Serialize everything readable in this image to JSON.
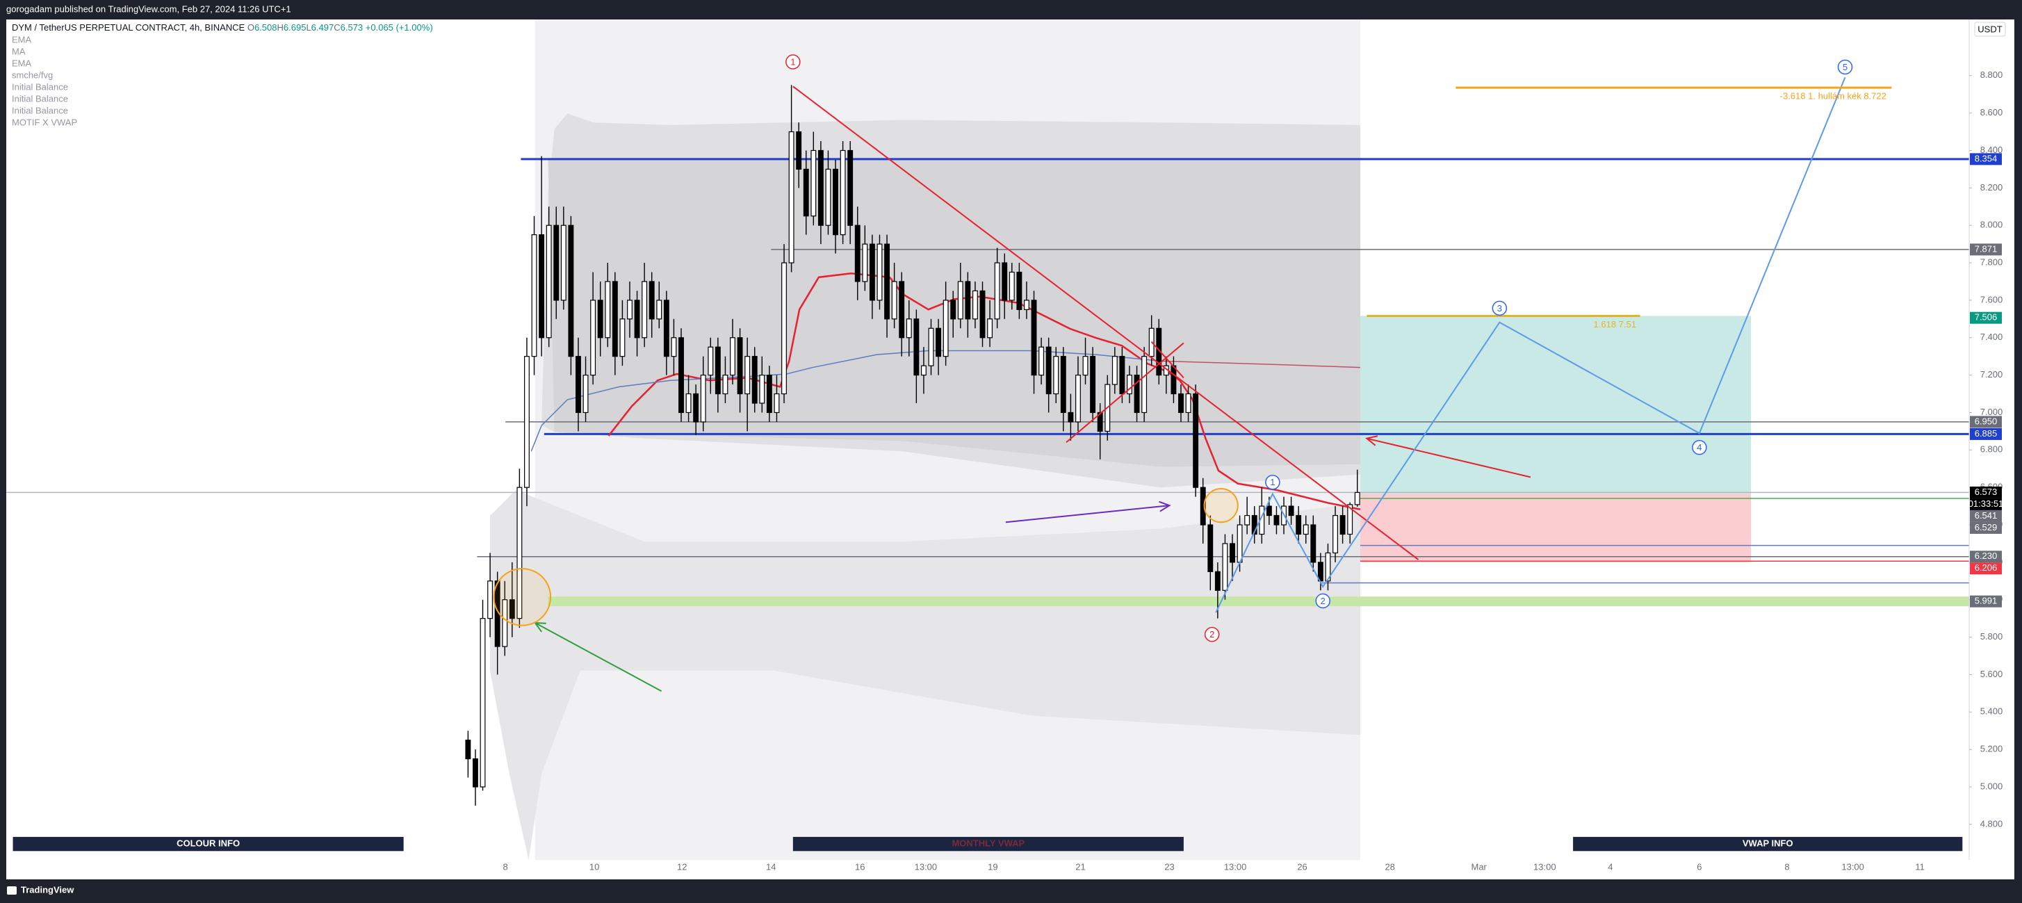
{
  "header": {
    "publisher": "gorogadam published on TradingView.com, Feb 27, 2024 11:26 UTC+1"
  },
  "chart_data": {
    "type": "candlestick",
    "title": "DYM / TetherUS PERPETUAL CONTRACT, 4h, BINANCE",
    "legend_keys": [
      "O",
      "H",
      "L",
      "C"
    ],
    "legend_values": [
      6.508,
      6.695,
      6.497,
      6.573
    ],
    "change": {
      "value": 0.065,
      "label": "+0.065"
    },
    "change_pct": {
      "value": 1.0,
      "label": "(+1.00%)"
    },
    "indicators": [
      "EMA",
      "MA",
      "EMA",
      "smche/fvg",
      "Initial Balance",
      "Initial Balance",
      "Initial Balance",
      "MOTIF X VWAP"
    ],
    "currency": "USDT",
    "up_color": "#ffffff",
    "down_color": "#000000",
    "ylim": [
      4.61,
      9.1
    ],
    "yticks": [
      {
        "value": 4.8,
        "label": "4.800"
      },
      {
        "value": 5.0,
        "label": "5.000"
      },
      {
        "value": 5.2,
        "label": "5.200"
      },
      {
        "value": 5.4,
        "label": "5.400"
      },
      {
        "value": 5.6,
        "label": "5.600"
      },
      {
        "value": 5.8,
        "label": "5.800"
      },
      {
        "value": 6.0,
        "label": "6.000"
      },
      {
        "value": 6.2,
        "label": "6.200"
      },
      {
        "value": 6.4,
        "label": "6.400"
      },
      {
        "value": 6.6,
        "label": "6.600"
      },
      {
        "value": 6.8,
        "label": "6.800"
      },
      {
        "value": 7.0,
        "label": "7.000"
      },
      {
        "value": 7.2,
        "label": "7.200"
      },
      {
        "value": 7.4,
        "label": "7.400"
      },
      {
        "value": 7.6,
        "label": "7.600"
      },
      {
        "value": 7.8,
        "label": "7.800"
      },
      {
        "value": 8.0,
        "label": "8.000"
      },
      {
        "value": 8.2,
        "label": "8.200"
      },
      {
        "value": 8.4,
        "label": "8.400"
      },
      {
        "value": 8.6,
        "label": "8.600"
      },
      {
        "value": 8.8,
        "label": "8.800"
      }
    ],
    "xticks": [
      "8",
      "10",
      "12",
      "14",
      "16",
      "13:00",
      "19",
      "21",
      "23",
      "13:00",
      "26",
      "28",
      "Mar",
      "13:00",
      "4",
      "6",
      "8",
      "13:00",
      "11"
    ],
    "ohlc": [
      [
        5.25,
        5.3,
        5.05,
        5.15
      ],
      [
        5.15,
        5.2,
        4.9,
        5.0
      ],
      [
        5.0,
        6.0,
        4.98,
        5.9
      ],
      [
        5.9,
        6.25,
        5.8,
        6.1
      ],
      [
        6.1,
        6.15,
        5.6,
        5.75
      ],
      [
        5.75,
        6.1,
        5.7,
        6.0
      ],
      [
        6.0,
        6.2,
        5.8,
        5.9
      ],
      [
        5.9,
        6.7,
        5.85,
        6.6
      ],
      [
        6.6,
        7.4,
        6.5,
        7.3
      ],
      [
        7.3,
        8.05,
        7.2,
        7.95
      ],
      [
        7.95,
        8.37,
        7.3,
        7.4
      ],
      [
        7.4,
        8.1,
        7.35,
        8.0
      ],
      [
        8.0,
        8.1,
        7.5,
        7.6
      ],
      [
        7.6,
        8.1,
        7.55,
        8.0
      ],
      [
        8.0,
        8.05,
        7.2,
        7.3
      ],
      [
        7.3,
        7.4,
        6.9,
        7.0
      ],
      [
        7.0,
        7.3,
        6.95,
        7.2
      ],
      [
        7.2,
        7.75,
        7.15,
        7.6
      ],
      [
        7.6,
        7.7,
        7.3,
        7.4
      ],
      [
        7.4,
        7.8,
        7.35,
        7.7
      ],
      [
        7.7,
        7.75,
        7.2,
        7.3
      ],
      [
        7.3,
        7.6,
        7.25,
        7.5
      ],
      [
        7.5,
        7.7,
        7.4,
        7.6
      ],
      [
        7.6,
        7.65,
        7.3,
        7.4
      ],
      [
        7.4,
        7.8,
        7.35,
        7.7
      ],
      [
        7.7,
        7.75,
        7.4,
        7.5
      ],
      [
        7.5,
        7.7,
        7.45,
        7.6
      ],
      [
        7.6,
        7.65,
        7.2,
        7.3
      ],
      [
        7.3,
        7.5,
        7.2,
        7.4
      ],
      [
        7.4,
        7.45,
        6.95,
        7.0
      ],
      [
        7.0,
        7.2,
        6.95,
        7.1
      ],
      [
        7.1,
        7.15,
        6.88,
        6.95
      ],
      [
        6.95,
        7.3,
        6.9,
        7.2
      ],
      [
        7.2,
        7.4,
        7.1,
        7.35
      ],
      [
        7.35,
        7.4,
        7.0,
        7.1
      ],
      [
        7.1,
        7.3,
        7.05,
        7.2
      ],
      [
        7.2,
        7.5,
        7.15,
        7.4
      ],
      [
        7.4,
        7.45,
        7.0,
        7.1
      ],
      [
        7.1,
        7.4,
        6.9,
        7.3
      ],
      [
        7.3,
        7.35,
        7.0,
        7.05
      ],
      [
        7.05,
        7.3,
        7.0,
        7.2
      ],
      [
        7.2,
        7.25,
        6.95,
        7.0
      ],
      [
        7.0,
        7.2,
        6.95,
        7.1
      ],
      [
        7.1,
        7.9,
        7.05,
        7.8
      ],
      [
        7.8,
        8.75,
        7.75,
        8.5
      ],
      [
        8.5,
        8.55,
        8.2,
        8.3
      ],
      [
        8.3,
        8.4,
        7.95,
        8.05
      ],
      [
        8.05,
        8.5,
        8.0,
        8.4
      ],
      [
        8.4,
        8.45,
        7.9,
        8.0
      ],
      [
        8.0,
        8.4,
        7.95,
        8.3
      ],
      [
        8.3,
        8.35,
        7.85,
        7.95
      ],
      [
        7.95,
        8.45,
        7.9,
        8.4
      ],
      [
        8.4,
        8.45,
        7.9,
        8.0
      ],
      [
        8.0,
        8.1,
        7.6,
        7.7
      ],
      [
        7.7,
        8.0,
        7.65,
        7.9
      ],
      [
        7.9,
        7.95,
        7.5,
        7.6
      ],
      [
        7.6,
        7.95,
        7.55,
        7.9
      ],
      [
        7.9,
        7.95,
        7.4,
        7.5
      ],
      [
        7.5,
        7.8,
        7.45,
        7.7
      ],
      [
        7.7,
        7.75,
        7.3,
        7.4
      ],
      [
        7.4,
        7.6,
        7.3,
        7.5
      ],
      [
        7.5,
        7.55,
        7.05,
        7.2
      ],
      [
        7.2,
        7.35,
        7.1,
        7.25
      ],
      [
        7.25,
        7.5,
        7.2,
        7.45
      ],
      [
        7.45,
        7.5,
        7.2,
        7.3
      ],
      [
        7.3,
        7.7,
        7.25,
        7.6
      ],
      [
        7.6,
        7.65,
        7.4,
        7.5
      ],
      [
        7.5,
        7.8,
        7.45,
        7.7
      ],
      [
        7.7,
        7.75,
        7.4,
        7.5
      ],
      [
        7.5,
        7.7,
        7.45,
        7.65
      ],
      [
        7.65,
        7.7,
        7.35,
        7.4
      ],
      [
        7.4,
        7.6,
        7.35,
        7.5
      ],
      [
        7.5,
        7.88,
        7.45,
        7.8
      ],
      [
        7.8,
        7.85,
        7.5,
        7.6
      ],
      [
        7.6,
        7.8,
        7.55,
        7.75
      ],
      [
        7.75,
        7.8,
        7.5,
        7.55
      ],
      [
        7.55,
        7.7,
        7.5,
        7.6
      ],
      [
        7.6,
        7.65,
        7.1,
        7.2
      ],
      [
        7.2,
        7.4,
        7.15,
        7.35
      ],
      [
        7.35,
        7.4,
        7.0,
        7.1
      ],
      [
        7.1,
        7.35,
        7.05,
        7.3
      ],
      [
        7.3,
        7.35,
        6.9,
        7.0
      ],
      [
        7.0,
        7.1,
        6.85,
        6.95
      ],
      [
        6.95,
        7.3,
        6.9,
        7.2
      ],
      [
        7.2,
        7.4,
        7.15,
        7.3
      ],
      [
        7.3,
        7.35,
        6.95,
        7.0
      ],
      [
        7.0,
        7.05,
        6.75,
        6.9
      ],
      [
        6.9,
        7.2,
        6.85,
        7.15
      ],
      [
        7.15,
        7.35,
        7.1,
        7.3
      ],
      [
        7.3,
        7.35,
        7.05,
        7.1
      ],
      [
        7.1,
        7.25,
        7.05,
        7.2
      ],
      [
        7.2,
        7.25,
        6.95,
        7.0
      ],
      [
        7.0,
        7.35,
        6.95,
        7.3
      ],
      [
        7.3,
        7.52,
        7.25,
        7.45
      ],
      [
        7.45,
        7.5,
        7.15,
        7.2
      ],
      [
        7.2,
        7.3,
        7.1,
        7.25
      ],
      [
        7.25,
        7.3,
        7.05,
        7.1
      ],
      [
        7.1,
        7.15,
        6.95,
        7.0
      ],
      [
        7.0,
        7.15,
        6.95,
        7.1
      ],
      [
        7.1,
        7.15,
        6.55,
        6.6
      ],
      [
        6.6,
        6.65,
        6.3,
        6.4
      ],
      [
        6.4,
        6.45,
        6.05,
        6.15
      ],
      [
        6.15,
        6.2,
        5.9,
        6.05
      ],
      [
        6.05,
        6.35,
        6.0,
        6.3
      ],
      [
        6.3,
        6.35,
        6.1,
        6.2
      ],
      [
        6.2,
        6.45,
        6.15,
        6.4
      ],
      [
        6.4,
        6.55,
        6.35,
        6.45
      ],
      [
        6.45,
        6.5,
        6.3,
        6.35
      ],
      [
        6.35,
        6.6,
        6.3,
        6.5
      ],
      [
        6.5,
        6.55,
        6.4,
        6.45
      ],
      [
        6.45,
        6.5,
        6.35,
        6.4
      ],
      [
        6.4,
        6.55,
        6.35,
        6.5
      ],
      [
        6.5,
        6.55,
        6.4,
        6.45
      ],
      [
        6.45,
        6.5,
        6.3,
        6.35
      ],
      [
        6.35,
        6.45,
        6.3,
        6.4
      ],
      [
        6.4,
        6.45,
        6.15,
        6.2
      ],
      [
        6.2,
        6.25,
        6.05,
        6.1
      ],
      [
        6.1,
        6.3,
        6.05,
        6.25
      ],
      [
        6.25,
        6.5,
        6.2,
        6.45
      ],
      [
        6.45,
        6.5,
        6.3,
        6.35
      ],
      [
        6.35,
        6.52,
        6.3,
        6.508
      ],
      [
        6.508,
        6.695,
        6.497,
        6.573
      ]
    ],
    "levels": [
      {
        "price": 8.354,
        "color": "#1e3fd0",
        "line": "#1e3fd0"
      },
      {
        "price": 7.871,
        "color": "#6b6e78",
        "line": "#6b6e78"
      },
      {
        "price": 7.506,
        "color": "#089981"
      },
      {
        "price": 6.95,
        "label": "6.950",
        "color": "#6b6e78",
        "line": "#6b6e78"
      },
      {
        "price": 6.885,
        "color": "#1e3fd0",
        "line": "#1e3fd0"
      },
      {
        "price": 6.573,
        "color": "#000000",
        "line": "#b2b5be"
      },
      {
        "price": 6.541,
        "color": "#6b6e78",
        "line": "#4caf50"
      },
      {
        "price": 6.529,
        "color": "#6b6e78"
      },
      {
        "price": 6.23,
        "label": "6.230",
        "color": "#6b6e78",
        "line": "#6b6e78"
      },
      {
        "price": 6.206,
        "color": "#f23645",
        "line": "#f23645"
      },
      {
        "price": 5.991,
        "color": "#6b6e78",
        "line": "#c5e8a8"
      }
    ],
    "countdown": "01:33:51",
    "annotations": [
      "-3.618 1. hullám kék 8.722",
      "1.618 7.51"
    ],
    "waves_red": [
      "1",
      "2"
    ],
    "waves_blue": [
      "1",
      "2",
      "3",
      "4",
      "5"
    ]
  },
  "panels": [
    "COLOUR INFO",
    "MONTHLY VWAP",
    "VWAP INFO"
  ],
  "footer": {
    "brand": "TradingView"
  }
}
